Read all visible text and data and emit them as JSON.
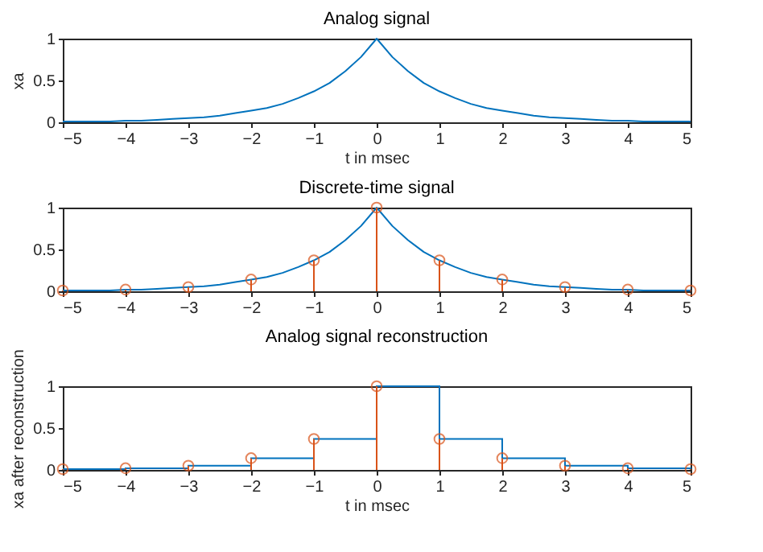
{
  "chart_data": [
    {
      "type": "line",
      "title": "Analog signal",
      "xlabel": "t in msec",
      "ylabel": "xa",
      "xlim": [
        -5,
        5
      ],
      "ylim": [
        0,
        1
      ],
      "xticks": [
        -5,
        -4,
        -3,
        -2,
        -1,
        0,
        1,
        2,
        3,
        4,
        5
      ],
      "yticks": [
        0,
        0.5,
        1
      ],
      "grid": false,
      "series": [
        {
          "color": "#0072bd",
          "x": [
            -5,
            -4.75,
            -4.5,
            -4.25,
            -4,
            -3.75,
            -3.5,
            -3.25,
            -3,
            -2.75,
            -2.5,
            -2.25,
            -2,
            -1.75,
            -1.5,
            -1.25,
            -1,
            -0.75,
            -0.5,
            -0.25,
            0,
            0.25,
            0.5,
            0.75,
            1,
            1.25,
            1.5,
            1.75,
            2,
            2.25,
            2.5,
            2.75,
            3,
            3.25,
            3.5,
            3.75,
            4,
            4.25,
            4.5,
            4.75,
            5
          ],
          "values": [
            0.01,
            0.01,
            0.01,
            0.01,
            0.02,
            0.02,
            0.03,
            0.04,
            0.05,
            0.06,
            0.08,
            0.11,
            0.14,
            0.17,
            0.22,
            0.29,
            0.37,
            0.47,
            0.61,
            0.78,
            1,
            0.78,
            0.61,
            0.47,
            0.37,
            0.29,
            0.22,
            0.17,
            0.14,
            0.11,
            0.08,
            0.06,
            0.05,
            0.04,
            0.03,
            0.02,
            0.02,
            0.01,
            0.01,
            0.01,
            0.01
          ]
        }
      ]
    },
    {
      "type": "line",
      "title": "Discrete-time signal",
      "xlim": [
        -5,
        5
      ],
      "ylim": [
        0,
        1
      ],
      "xticks": [
        -5,
        -4,
        -3,
        -2,
        -1,
        0,
        1,
        2,
        3,
        4,
        5
      ],
      "yticks": [
        0,
        0.5,
        1
      ],
      "grid": false,
      "series": [
        {
          "color": "#0072bd",
          "x": [
            -5,
            -4.75,
            -4.5,
            -4.25,
            -4,
            -3.75,
            -3.5,
            -3.25,
            -3,
            -2.75,
            -2.5,
            -2.25,
            -2,
            -1.75,
            -1.5,
            -1.25,
            -1,
            -0.75,
            -0.5,
            -0.25,
            0,
            0.25,
            0.5,
            0.75,
            1,
            1.25,
            1.5,
            1.75,
            2,
            2.25,
            2.5,
            2.75,
            3,
            3.25,
            3.5,
            3.75,
            4,
            4.25,
            4.5,
            4.75,
            5
          ],
          "values": [
            0.01,
            0.01,
            0.01,
            0.01,
            0.02,
            0.02,
            0.03,
            0.04,
            0.05,
            0.06,
            0.08,
            0.11,
            0.14,
            0.17,
            0.22,
            0.29,
            0.37,
            0.47,
            0.61,
            0.78,
            1,
            0.78,
            0.61,
            0.47,
            0.37,
            0.29,
            0.22,
            0.17,
            0.14,
            0.11,
            0.08,
            0.06,
            0.05,
            0.04,
            0.03,
            0.02,
            0.02,
            0.01,
            0.01,
            0.01,
            0.01
          ]
        },
        {
          "type": "lollipop",
          "color": "#d95319",
          "marker": "circle",
          "x": [
            -5,
            -4,
            -3,
            -2,
            -1,
            0,
            1,
            2,
            3,
            4,
            5
          ],
          "values": [
            0.01,
            0.02,
            0.05,
            0.14,
            0.37,
            1,
            0.37,
            0.14,
            0.05,
            0.02,
            0.01
          ]
        }
      ]
    },
    {
      "type": "line",
      "title": "Analog signal reconstruction",
      "xlabel": "t in msec",
      "ylabel": "xa after reconstruction",
      "xlim": [
        -5,
        5
      ],
      "ylim": [
        0,
        1
      ],
      "xticks": [
        -5,
        -4,
        -3,
        -2,
        -1,
        0,
        1,
        2,
        3,
        4,
        5
      ],
      "yticks": [
        0,
        0.5,
        1
      ],
      "grid": false,
      "series": [
        {
          "type": "step",
          "color": "#0072bd",
          "x": [
            -5,
            -4,
            -3,
            -2,
            -1,
            0,
            1,
            2,
            3,
            4,
            5
          ],
          "values": [
            0.01,
            0.02,
            0.05,
            0.14,
            0.37,
            1,
            0.37,
            0.14,
            0.05,
            0.02,
            0.01
          ]
        },
        {
          "type": "lollipop",
          "color": "#d95319",
          "marker": "circle",
          "x": [
            -5,
            -4,
            -3,
            -2,
            -1,
            0,
            1,
            2,
            3,
            4,
            5
          ],
          "values": [
            0.01,
            0.02,
            0.05,
            0.14,
            0.37,
            1,
            0.37,
            0.14,
            0.05,
            0.02,
            0.01
          ]
        }
      ]
    }
  ]
}
